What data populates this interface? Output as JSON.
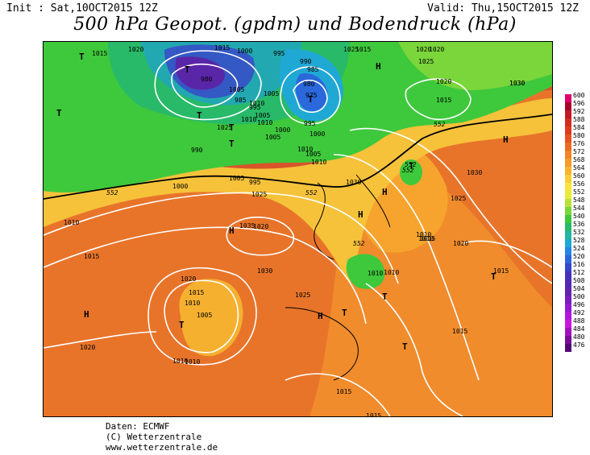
{
  "header": {
    "init": "Init : Sat,10OCT2015 12Z",
    "valid": "Valid: Thu,15OCT2015 12Z",
    "title": "500 hPa Geopot. (gpdm) und Bodendruck (hPa)"
  },
  "scale": {
    "labels": [
      "600",
      "596",
      "592",
      "588",
      "584",
      "580",
      "576",
      "572",
      "568",
      "564",
      "560",
      "556",
      "552",
      "548",
      "544",
      "540",
      "536",
      "532",
      "528",
      "524",
      "520",
      "516",
      "512",
      "508",
      "504",
      "500",
      "496",
      "492",
      "488",
      "484",
      "480",
      "476"
    ],
    "colors": [
      "#e0006c",
      "#a8002a",
      "#c01a22",
      "#d22a1e",
      "#e03a1c",
      "#e8521e",
      "#ee6a20",
      "#f38424",
      "#f69c28",
      "#f9b42e",
      "#fbcd34",
      "#fbe23c",
      "#e8ec3a",
      "#b8e236",
      "#7ad63a",
      "#3ec83c",
      "#28ba68",
      "#22b6a2",
      "#20a8d4",
      "#2288e4",
      "#2a68dc",
      "#3448cc",
      "#4432bc",
      "#5428b2",
      "#6422aa",
      "#7a1cc0",
      "#9418d2",
      "#b016de",
      "#c818e0",
      "#a012bc",
      "#7a0c9a",
      "#540878"
    ]
  },
  "map": {
    "pressure_labels": [
      "1015",
      "1020",
      "1015",
      "1000",
      "995",
      "990",
      "985",
      "980",
      "975",
      "980",
      "985",
      "990",
      "995",
      "1000",
      "1005",
      "1010",
      "1025",
      "1010",
      "1005",
      "1000",
      "995",
      "1005",
      "1010",
      "1005",
      "1010",
      "1005",
      "1000",
      "995",
      "1005",
      "1010",
      "1015",
      "1020",
      "1025",
      "1030",
      "1020",
      "1015",
      "1030",
      "1025",
      "1030",
      "1025",
      "1020",
      "1015",
      "1010",
      "1035",
      "1030",
      "1020",
      "1015",
      "1010",
      "1005",
      "1010",
      "1025",
      "1020",
      "1015",
      "1015",
      "1015",
      "1020",
      "1010",
      "1015",
      "1010",
      "1010",
      "1010",
      "1010",
      "1015",
      "1020",
      "1025",
      "1030"
    ],
    "geopot_labels": [
      "552",
      "552",
      "552",
      "552",
      "552",
      "552"
    ],
    "high_marks": [
      "H",
      "H",
      "H",
      "H",
      "H",
      "H",
      "H"
    ],
    "low_marks": [
      "T",
      "T",
      "T",
      "T",
      "T",
      "T",
      "T",
      "T",
      "T",
      "T",
      "T",
      "T",
      "T"
    ]
  },
  "credits": {
    "line1": "Daten: ECMWF",
    "line2": "(C) Wetterzentrale",
    "line3": "www.wetterzentrale.de"
  }
}
